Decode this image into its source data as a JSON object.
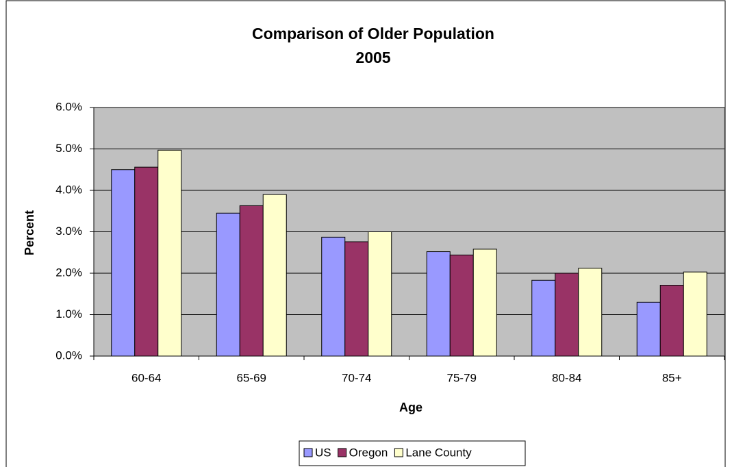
{
  "chart_data": {
    "type": "bar",
    "title": "Comparison of Older Population",
    "subtitle": "2005",
    "x_label": "Age",
    "y_label": "Percent",
    "categories": [
      "60-64",
      "65-69",
      "70-74",
      "75-79",
      "80-84",
      "85+"
    ],
    "series": [
      {
        "name": "US",
        "color": "#9999ff",
        "values": [
          4.5,
          3.45,
          2.87,
          2.52,
          1.83,
          1.3
        ]
      },
      {
        "name": "Oregon",
        "color": "#993366",
        "values": [
          4.56,
          3.63,
          2.76,
          2.44,
          2.0,
          1.71
        ]
      },
      {
        "name": "Lane County",
        "color": "#ffffcc",
        "values": [
          4.97,
          3.9,
          3.0,
          2.58,
          2.12,
          2.03
        ]
      }
    ],
    "ylim": [
      0,
      6
    ],
    "yticks": [
      {
        "value": 0,
        "label": "0.0%"
      },
      {
        "value": 1,
        "label": "1.0%"
      },
      {
        "value": 2,
        "label": "2.0%"
      },
      {
        "value": 3,
        "label": "3.0%"
      },
      {
        "value": 4,
        "label": "4.0%"
      },
      {
        "value": 5,
        "label": "5.0%"
      },
      {
        "value": 6,
        "label": "6.0%"
      }
    ],
    "grid": true,
    "legend": "bottom"
  }
}
